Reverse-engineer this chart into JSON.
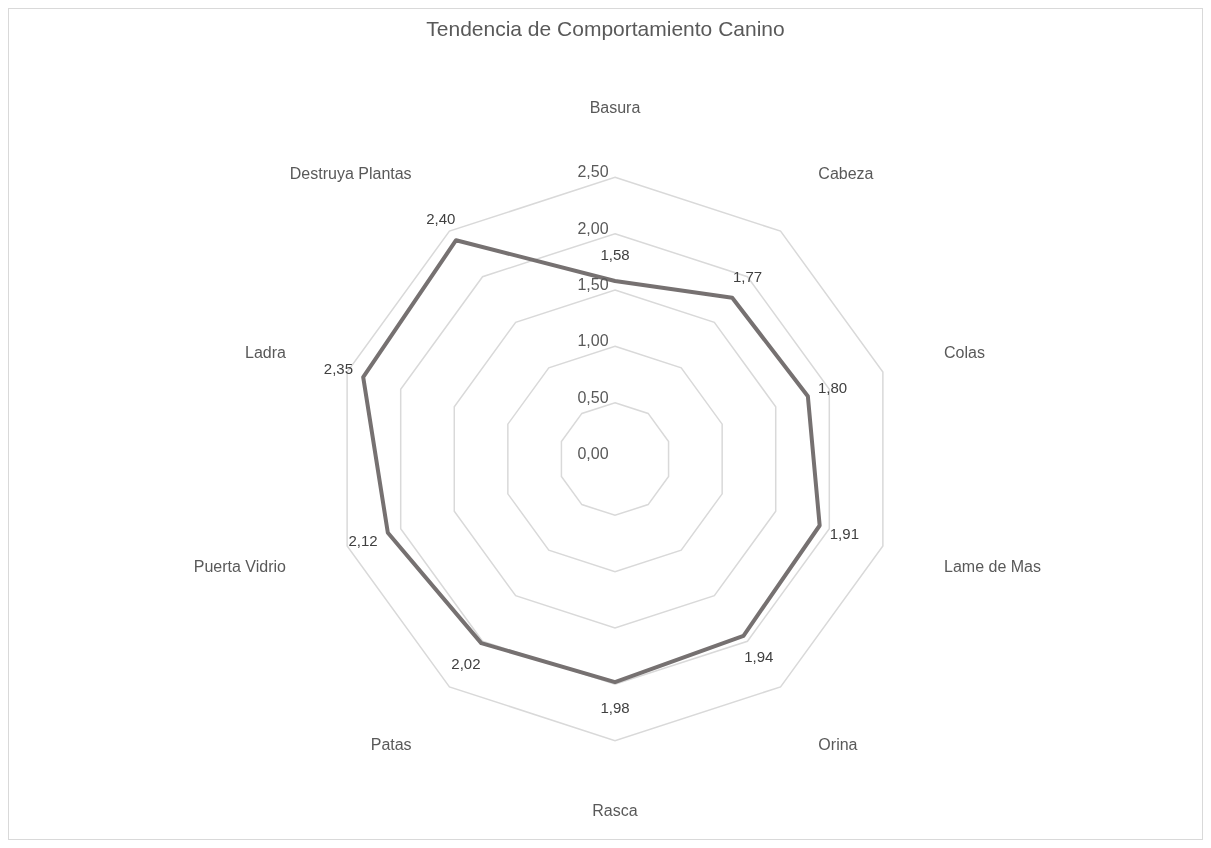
{
  "chart_data": {
    "type": "radar",
    "title": "Tendencia de Comportamiento Canino",
    "categories": [
      "Basura",
      "Cabeza",
      "Colas",
      "Lame de Mas",
      "Orina",
      "Rasca",
      "Patas",
      "Puerta Vidrio",
      "Ladra",
      "Destruya Plantas"
    ],
    "series": [
      {
        "color": "#767171",
        "values": [
          1.58,
          1.77,
          1.8,
          1.91,
          1.94,
          1.98,
          2.02,
          2.12,
          2.35,
          2.4
        ],
        "value_labels": [
          "1,58",
          "1,77",
          "1,80",
          "1,91",
          "1,94",
          "1,98",
          "2,02",
          "2,12",
          "2,35",
          "2,40"
        ]
      }
    ],
    "ylim": [
      0,
      2.5
    ],
    "yticks": [
      {
        "value": 0,
        "label": "0,00"
      },
      {
        "value": 0.5,
        "label": "0,50"
      },
      {
        "value": 1,
        "label": "1,00"
      },
      {
        "value": 1.5,
        "label": "1,50"
      },
      {
        "value": 2,
        "label": "2,00"
      },
      {
        "value": 2.5,
        "label": "2,50"
      }
    ],
    "grid": true,
    "legend": false,
    "marker": "none",
    "line_style": "solid"
  }
}
